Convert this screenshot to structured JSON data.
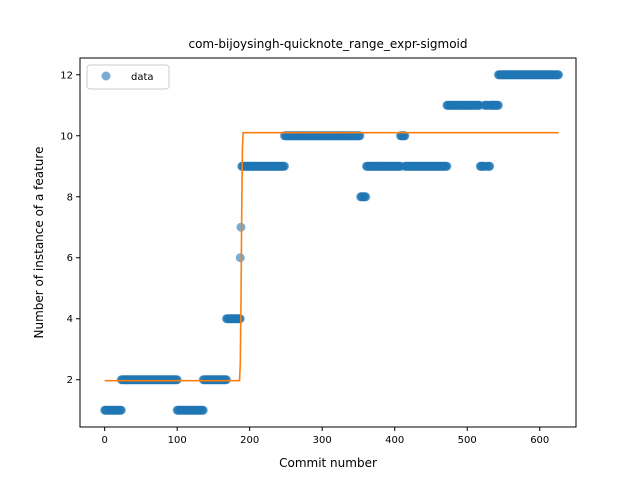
{
  "chart_data": {
    "type": "scatter",
    "title": "com-bijoysingh-quicknote_range_expr-sigmoid",
    "xlabel": "Commit number",
    "ylabel": "Number of instance of a feature",
    "xlim": [
      -34,
      650
    ],
    "ylim": [
      0.45,
      12.55
    ],
    "x_ticks": [
      0,
      100,
      200,
      300,
      400,
      500,
      600
    ],
    "y_ticks": [
      2,
      4,
      6,
      8,
      10,
      12
    ],
    "grid": false,
    "legend": {
      "position": "top-left",
      "entries": [
        "data"
      ]
    },
    "colors": {
      "data": "#1f77b4",
      "fit": "#ff7f0e"
    },
    "series": [
      {
        "name": "data",
        "kind": "scatter",
        "segments": [
          {
            "x_start": 0,
            "x_end": 23,
            "y": 1
          },
          {
            "x_start": 23,
            "x_end": 100,
            "y": 2
          },
          {
            "x_start": 100,
            "x_end": 136,
            "y": 1
          },
          {
            "x_start": 136,
            "x_end": 168,
            "y": 2
          },
          {
            "x_start": 168,
            "x_end": 187,
            "y": 4
          },
          {
            "x_start": 187,
            "x_end": 187,
            "y": 6
          },
          {
            "x_start": 188,
            "x_end": 188,
            "y": 7
          },
          {
            "x_start": 189,
            "x_end": 248,
            "y": 9
          },
          {
            "x_start": 248,
            "x_end": 352,
            "y": 10
          },
          {
            "x_start": 353,
            "x_end": 360,
            "y": 8
          },
          {
            "x_start": 361,
            "x_end": 408,
            "y": 9
          },
          {
            "x_start": 408,
            "x_end": 414,
            "y": 10
          },
          {
            "x_start": 414,
            "x_end": 472,
            "y": 9
          },
          {
            "x_start": 472,
            "x_end": 517,
            "y": 11
          },
          {
            "x_start": 518,
            "x_end": 524,
            "y": 9
          },
          {
            "x_start": 524,
            "x_end": 528,
            "y": 11
          },
          {
            "x_start": 528,
            "x_end": 531,
            "y": 9
          },
          {
            "x_start": 531,
            "x_end": 543,
            "y": 11
          },
          {
            "x_start": 543,
            "x_end": 626,
            "y": 12
          }
        ]
      },
      {
        "name": "",
        "kind": "line",
        "x": [
          0,
          186,
          187,
          188,
          189,
          190,
          191,
          626
        ],
        "y": [
          1.97,
          1.97,
          2.5,
          4.5,
          7.5,
          9.6,
          10.1,
          10.1
        ]
      }
    ]
  }
}
